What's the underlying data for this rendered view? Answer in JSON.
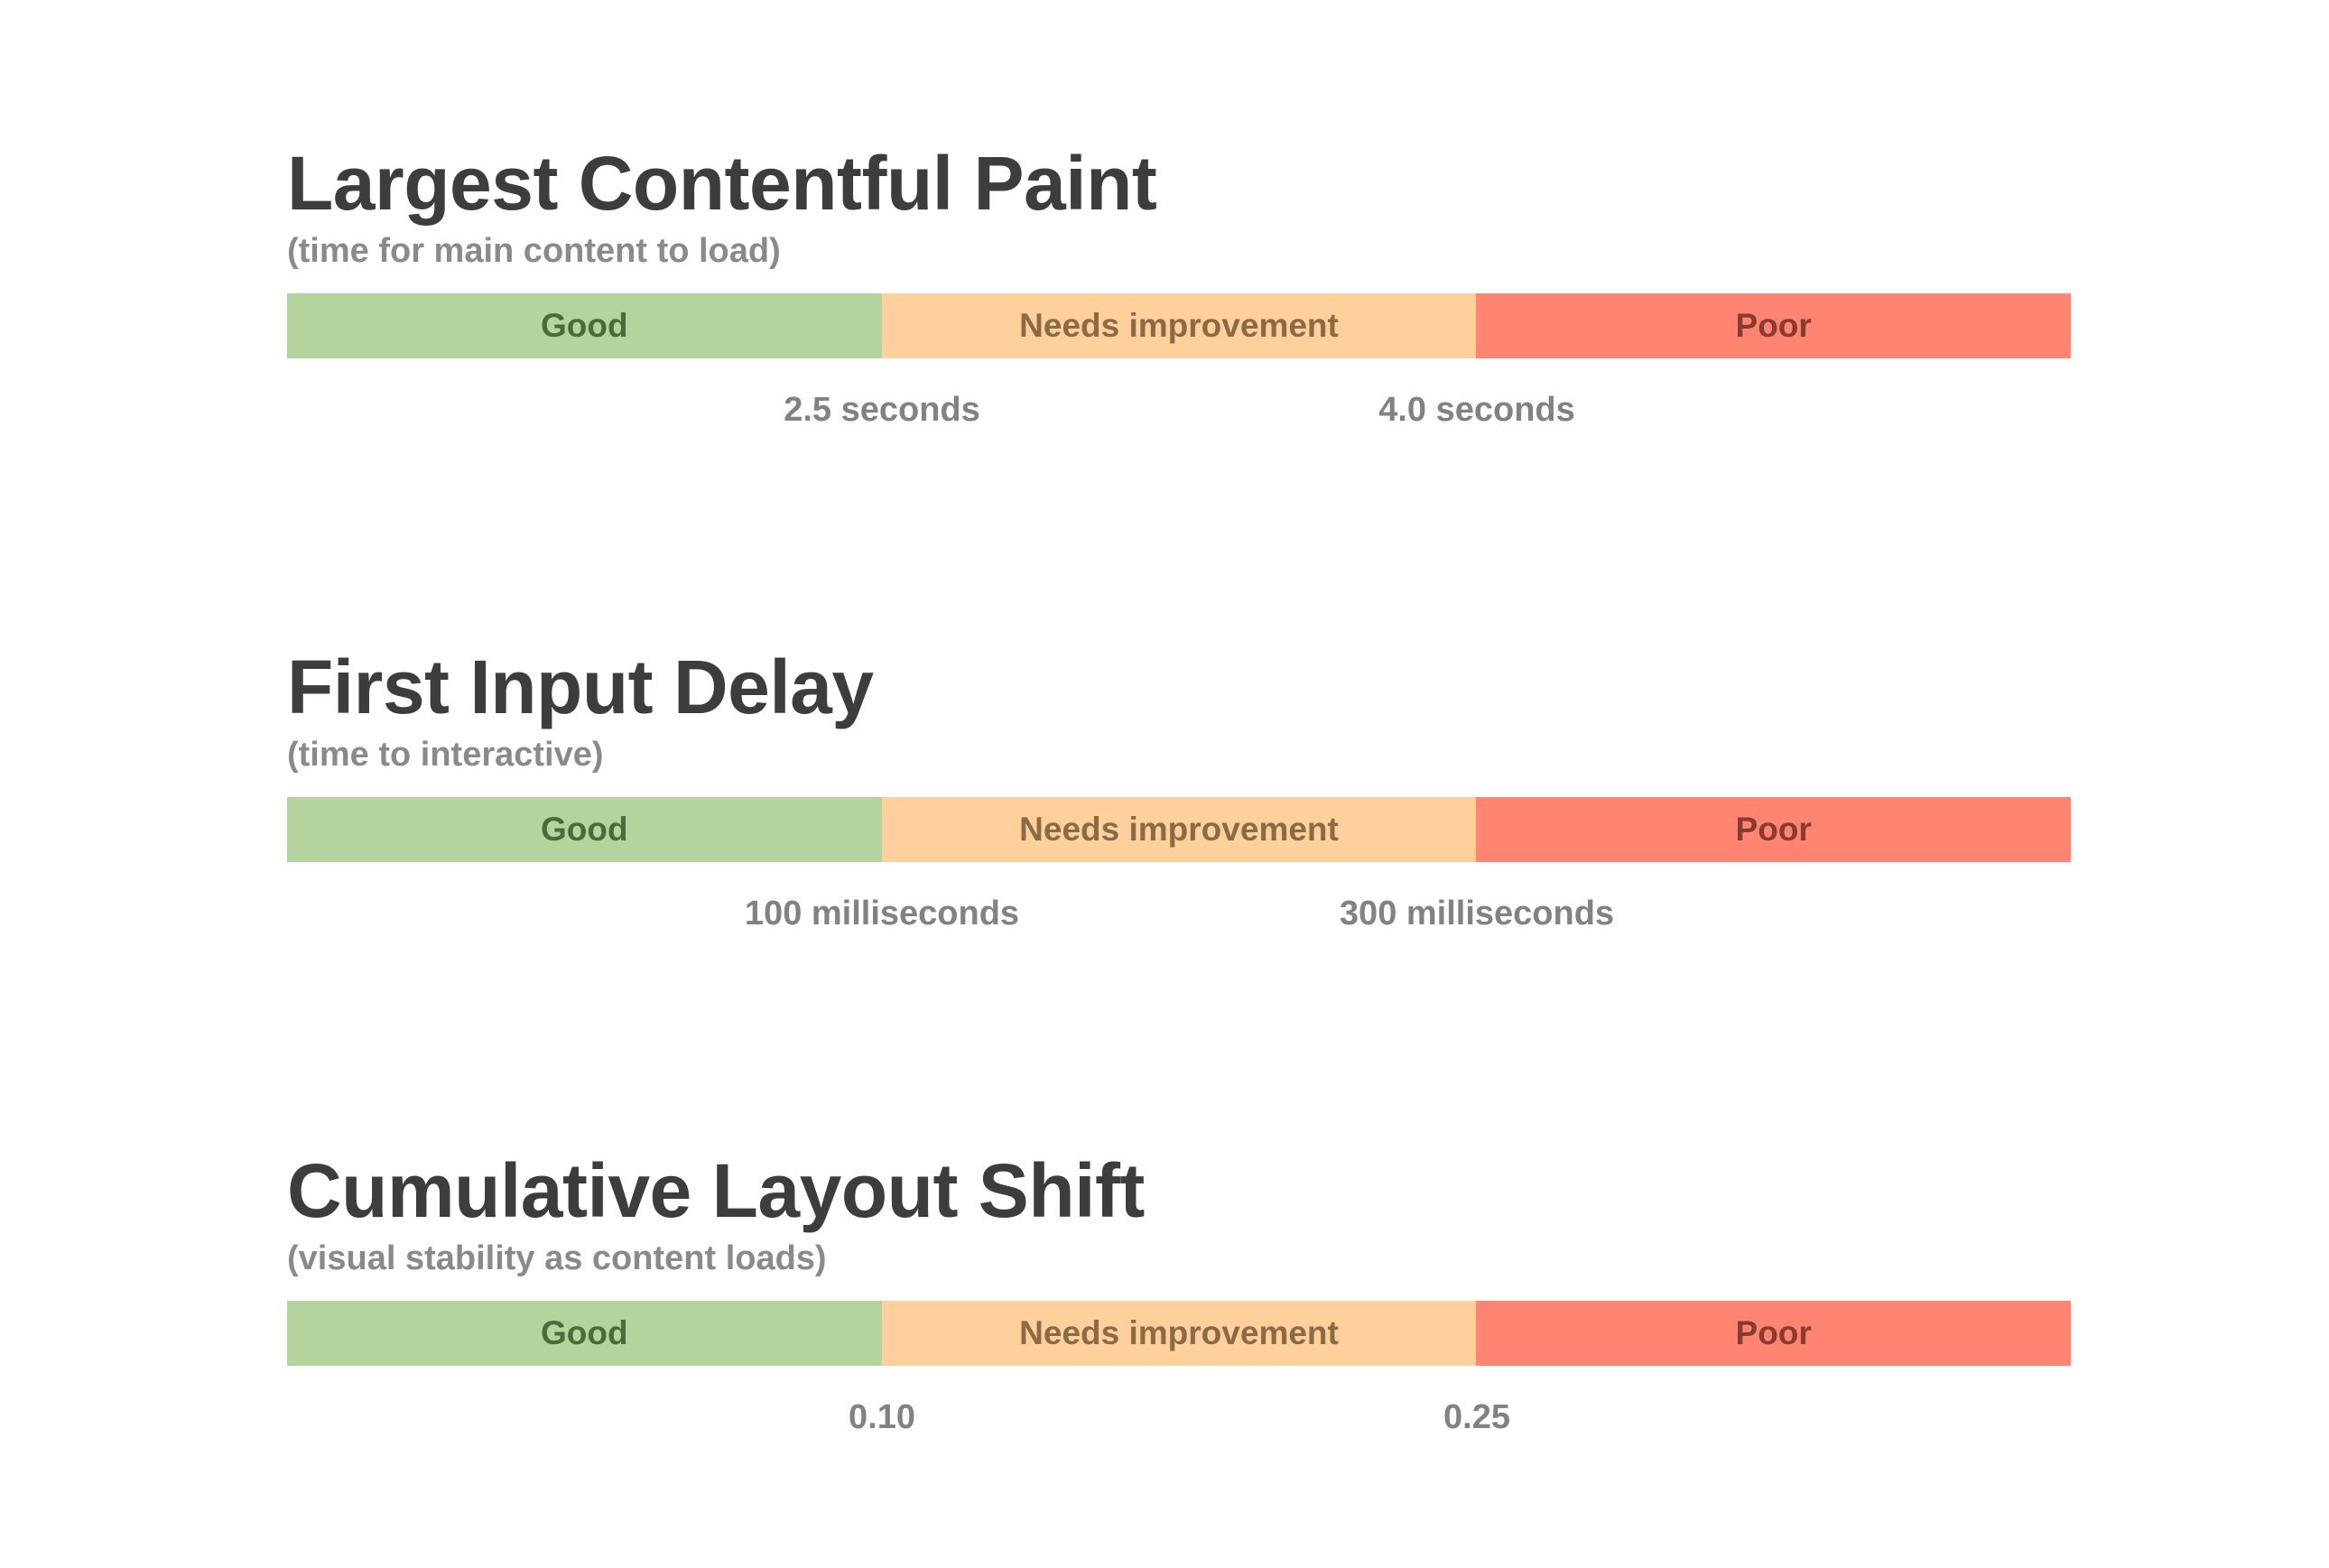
{
  "scale_labels": {
    "good": "Good",
    "needs_improvement": "Needs improvement",
    "poor": "Poor"
  },
  "colors": {
    "good": "#b5d39c",
    "needs_improvement": "#ffd09c",
    "poor": "#ff8472",
    "title": "#3d3d3d",
    "subtitle": "#8a8a8a"
  },
  "metrics": [
    {
      "title": "Largest Contentful Paint",
      "subtitle": "(time for main content to load)",
      "thresholds": [
        "2.5 seconds",
        "4.0 seconds"
      ]
    },
    {
      "title": "First Input Delay",
      "subtitle": "(time to interactive)",
      "thresholds": [
        "100 milliseconds",
        "300 milliseconds"
      ]
    },
    {
      "title": "Cumulative Layout Shift",
      "subtitle": "(visual stability as content loads)",
      "thresholds": [
        "0.10",
        "0.25"
      ]
    }
  ]
}
